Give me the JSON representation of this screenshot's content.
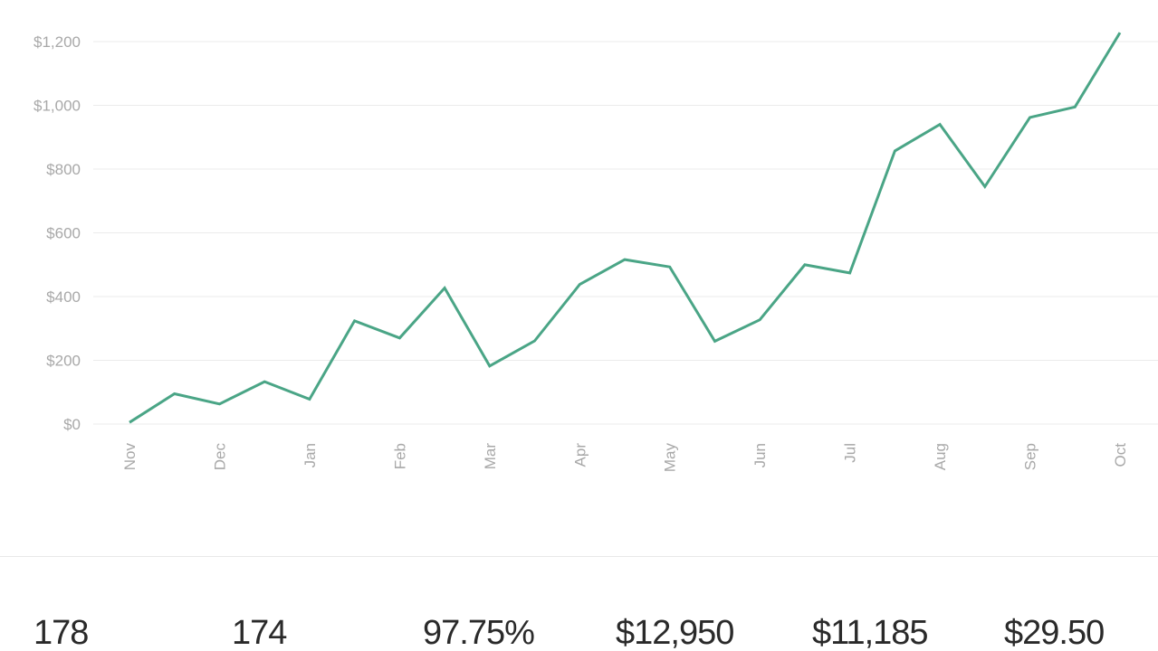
{
  "chart_data": {
    "type": "line",
    "title": "",
    "xlabel": "",
    "ylabel": "",
    "ylim": [
      0,
      1200
    ],
    "y_ticks": [
      0,
      200,
      400,
      600,
      800,
      1000,
      1200
    ],
    "y_tick_labels": [
      "$0",
      "$200",
      "$400",
      "$600",
      "$800",
      "$1,000",
      "$1,200"
    ],
    "x_tick_labels": [
      "Nov",
      "Dec",
      "Jan",
      "Feb",
      "Mar",
      "Apr",
      "May",
      "Jun",
      "Jul",
      "Aug",
      "Sep",
      "Oct"
    ],
    "grid": true,
    "line_color": "#4aa586",
    "series": [
      {
        "values": [
          5,
          95,
          63,
          133,
          78,
          324,
          270,
          427,
          182,
          261,
          438,
          516,
          493,
          260,
          327,
          500,
          474,
          857,
          940,
          745,
          962,
          995,
          1228
        ]
      }
    ]
  },
  "stats": [
    {
      "value": "178"
    },
    {
      "value": "174"
    },
    {
      "value": "97.75%"
    },
    {
      "value": "$12,950"
    },
    {
      "value": "$11,185"
    },
    {
      "value": "$29.50"
    }
  ]
}
